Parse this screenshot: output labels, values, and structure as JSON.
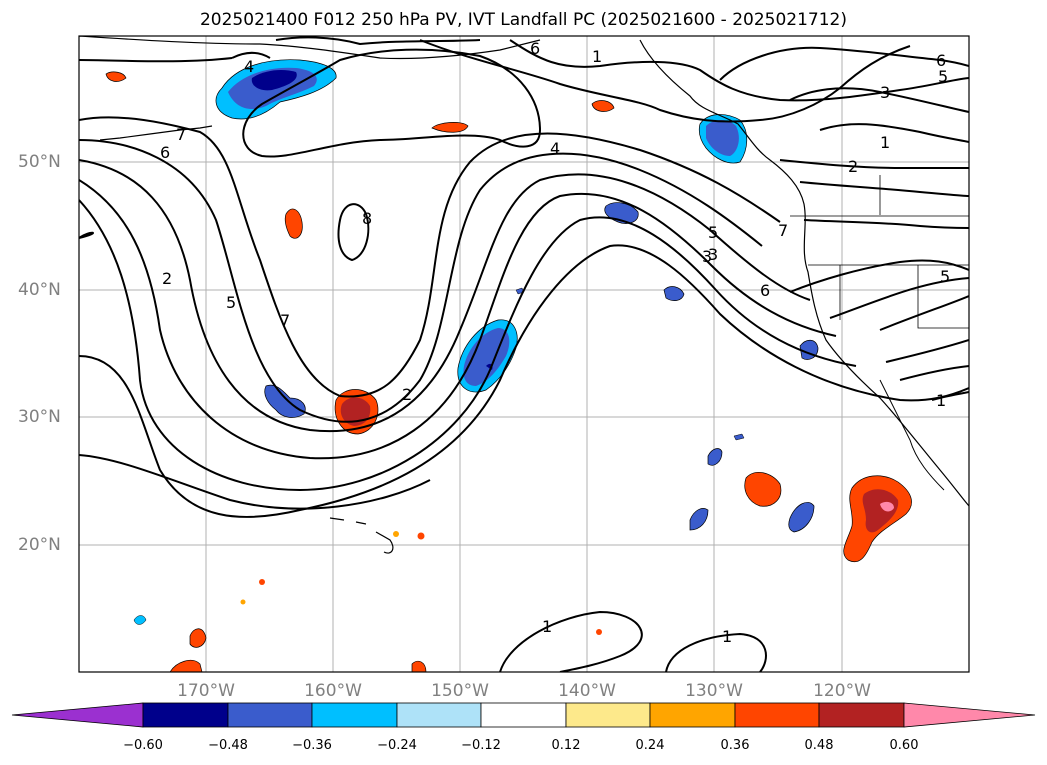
{
  "title": "2025021400 F012 250 hPa PV, IVT Landfall PC (2025021600 - 2025021712)",
  "lat_labels": [
    "50°N",
    "40°N",
    "30°N",
    "20°N"
  ],
  "lon_labels": [
    "170°W",
    "160°W",
    "150°W",
    "140°W",
    "130°W",
    "120°W"
  ],
  "colorbar": {
    "ticks": [
      "−0.60",
      "−0.48",
      "−0.36",
      "−0.24",
      "−0.12",
      "0.12",
      "0.24",
      "0.36",
      "0.48",
      "0.60"
    ],
    "colors": [
      "#9b30d0",
      "#00008b",
      "#3a5ccc",
      "#00bfff",
      "#aee2f8",
      "#ffffff",
      "#fde98b",
      "#ffa500",
      "#ff4500",
      "#b22222",
      "#ff88aa"
    ]
  },
  "contour_labels": [
    "4",
    "6",
    "1",
    "6",
    "5",
    "7",
    "6",
    "4",
    "3",
    "1",
    "2",
    "8",
    "2",
    "5",
    "7",
    "3",
    "5",
    "3",
    "7",
    "6",
    "5",
    "2",
    "1",
    "1",
    "1"
  ],
  "colors": {
    "contour": "#000000",
    "grid": "#b0b0b0",
    "axis_label": "#808080"
  }
}
